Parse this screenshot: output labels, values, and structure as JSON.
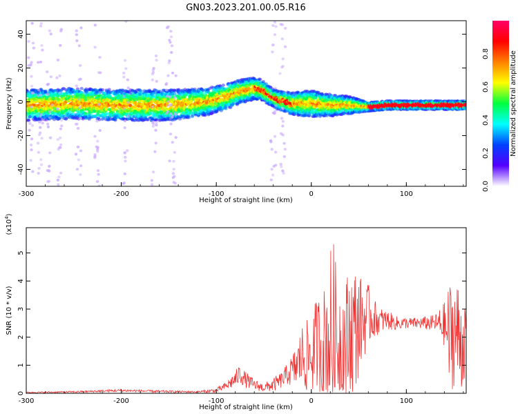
{
  "title": "GN03.2023.201.00.05.R16",
  "colorbar": {
    "label": "Normalized spectral amplitude",
    "range": [
      0.0,
      1.0
    ],
    "ticks": [
      "0.0",
      "0.2",
      "0.4",
      "0.6",
      "0.8"
    ],
    "tick_values": [
      0.0,
      0.2,
      0.4,
      0.6,
      0.8
    ],
    "colors": [
      "#ffffff",
      "#5500ff",
      "#0040ff",
      "#00ffff",
      "#00ff40",
      "#ffff00",
      "#ff8000",
      "#ff0000",
      "#ff0066"
    ]
  },
  "chart_data": [
    {
      "type": "heatmap",
      "title": "GN03.2023.201.00.05.R16",
      "xlabel": "Height of straight line (km)",
      "ylabel": "Frequency (Hz)",
      "xlim": [
        -300,
        163
      ],
      "ylim": [
        -50,
        48
      ],
      "x_ticks": [
        "-300",
        "-200",
        "-100",
        "0",
        "100"
      ],
      "x_tick_values": [
        -300,
        -200,
        -100,
        0,
        100
      ],
      "y_ticks": [
        "-40",
        "-20",
        "0",
        "20",
        "40"
      ],
      "y_tick_values": [
        -40,
        -20,
        0,
        20,
        40
      ],
      "ridge": {
        "x": [
          -300,
          -250,
          -200,
          -150,
          -110,
          -90,
          -75,
          -60,
          -52,
          -45,
          -35,
          -20,
          0,
          20,
          40,
          60,
          80,
          100,
          120,
          140,
          163
        ],
        "y": [
          -2,
          -1,
          -2,
          -2,
          0,
          3,
          6,
          8,
          7,
          4,
          1,
          -1,
          -1,
          -2,
          -2,
          -3,
          -2,
          -2,
          -2,
          -2,
          -2
        ]
      },
      "band_width": {
        "x": [
          -300,
          -150,
          -100,
          -60,
          -40,
          0,
          40,
          60,
          163
        ],
        "w": [
          7,
          7,
          6,
          5,
          4,
          6,
          4,
          2,
          2
        ]
      },
      "scatter_columns": [
        -295,
        -285,
        -275,
        -265,
        -245,
        -225,
        -195,
        -165,
        -150,
        -145,
        -40,
        -30
      ]
    },
    {
      "type": "line",
      "xlabel": "Height of straight line (km)",
      "ylabel": "SNR (10 * v/v)",
      "y_multiplier": "(x10",
      "y_multiplier_exp": "4",
      "y_multiplier_close": ")",
      "xlim": [
        -300,
        163
      ],
      "ylim": [
        0,
        5.9
      ],
      "x_ticks": [
        "-300",
        "-200",
        "-100",
        "0",
        "100"
      ],
      "x_tick_values": [
        -300,
        -200,
        -100,
        0,
        100
      ],
      "y_ticks": [
        "0",
        "1",
        "2",
        "3",
        "4",
        "5"
      ],
      "y_tick_values": [
        0,
        1,
        2,
        3,
        4,
        5
      ],
      "series": [
        {
          "color": "#ee3333",
          "envelope": {
            "x": [
              -300,
              -250,
              -200,
              -150,
              -120,
              -100,
              -90,
              -80,
              -75,
              -70,
              -60,
              -50,
              -40,
              -30,
              -25,
              -20,
              -15,
              -10,
              -5,
              0,
              5,
              10,
              15,
              20,
              22,
              25,
              30,
              35,
              40,
              45,
              50,
              55,
              60,
              65,
              70,
              80,
              90,
              100,
              110,
              120,
              130,
              140,
              145,
              150,
              155,
              160,
              163
            ],
            "center": [
              0.03,
              0.05,
              0.1,
              0.06,
              0.05,
              0.1,
              0.25,
              0.5,
              0.7,
              0.5,
              0.3,
              0.2,
              0.3,
              0.5,
              0.7,
              0.8,
              1.0,
              1.3,
              1.3,
              1.3,
              1.8,
              1.7,
              2.0,
              2.0,
              2.2,
              2.0,
              1.8,
              1.8,
              2.0,
              2.2,
              2.5,
              2.6,
              2.8,
              2.7,
              2.6,
              2.6,
              2.5,
              2.5,
              2.5,
              2.5,
              2.5,
              2.45,
              2.0,
              2.2,
              2.0,
              1.8,
              2.2
            ],
            "amp": [
              0.02,
              0.03,
              0.05,
              0.04,
              0.03,
              0.08,
              0.15,
              0.3,
              0.35,
              0.3,
              0.2,
              0.15,
              0.25,
              0.3,
              0.4,
              0.6,
              0.8,
              1.2,
              1.3,
              1.4,
              1.6,
              2.0,
              1.9,
              3.0,
              3.9,
              2.8,
              2.5,
              2.2,
              2.6,
              2.5,
              1.8,
              1.4,
              1.1,
              0.8,
              0.5,
              0.35,
              0.25,
              0.2,
              0.2,
              0.25,
              0.3,
              0.8,
              2.0,
              2.0,
              2.0,
              1.8,
              0.7
            ]
          }
        }
      ]
    }
  ]
}
